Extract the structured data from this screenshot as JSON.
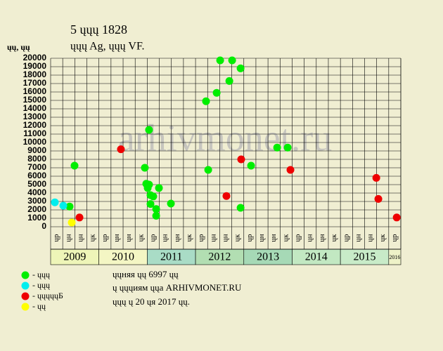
{
  "chart_data": {
    "type": "scatter",
    "title": "5 ųųų 1828",
    "subtitle": "ųųų Ag, ųųų VF.",
    "y_label": "ųų, ųų",
    "watermark": "arhivmonet.ru",
    "notes": [
      "ųųняя ųų 6997 ųų",
      "ų ųųųиям ųųа ARHIVMONET.RU",
      "ųųų ų 20 ųя 2017 ųų."
    ],
    "ylim": [
      0,
      20000
    ],
    "yticks": [
      0,
      1000,
      2000,
      3000,
      4000,
      5000,
      6000,
      7000,
      8000,
      9000,
      10000,
      11000,
      12000,
      13000,
      14000,
      15000,
      16000,
      17000,
      18000,
      19000,
      20000
    ],
    "xlim": [
      0,
      29
    ],
    "grid": true,
    "x_groups": [
      {
        "label": "2009",
        "color": "#eef5b8",
        "quarters": [
          "ųр",
          "ųн",
          "ųн",
          "ųк"
        ]
      },
      {
        "label": "2010",
        "color": "#f4f6c4",
        "quarters": [
          "ųр",
          "ųн",
          "ųн",
          "ųк"
        ]
      },
      {
        "label": "2011",
        "color": "#a9dcc6",
        "quarters": [
          "ųр",
          "ųн",
          "ųн",
          "ųк"
        ]
      },
      {
        "label": "2012",
        "color": "#b2deb2",
        "quarters": [
          "ųр",
          "ųн",
          "ųн",
          "ųк"
        ]
      },
      {
        "label": "2013",
        "color": "#a6d9b6",
        "quarters": [
          "ųр",
          "ųн",
          "ųн",
          "ųк"
        ]
      },
      {
        "label": "2014",
        "color": "#c2e8c2",
        "quarters": [
          "ųр",
          "ųн",
          "ųн",
          "ųк"
        ]
      },
      {
        "label": "2015",
        "color": "#c8ebc8",
        "quarters": [
          "ųр",
          "ųн",
          "ųн",
          "ųк"
        ]
      },
      {
        "label": "2016",
        "color": "#eef2c8",
        "quarters": [
          "ųр"
        ]
      }
    ],
    "series": [
      {
        "name": "- ųųų",
        "color": "#00ee00",
        "x": [
          1.57,
          1.98,
          7.8,
          8.15,
          7.92,
          8.15,
          8.04,
          8.27,
          8.5,
          8.27,
          8.74,
          8.74,
          8.97,
          9.96,
          12.87,
          13.05,
          13.75,
          14.04,
          14.8,
          15.03,
          15.73,
          15.73,
          16.6,
          18.76,
          19.63
        ],
        "values": [
          2400,
          7250,
          7000,
          11500,
          5100,
          5000,
          4600,
          3750,
          3600,
          2700,
          2100,
          1300,
          4600,
          2750,
          14900,
          6750,
          15900,
          19750,
          17300,
          19750,
          18800,
          2250,
          7250,
          9400,
          9400
        ]
      },
      {
        "name": "- ųųų",
        "color": "#00eeee",
        "x": [
          0.35,
          1.05
        ],
        "values": [
          2900,
          2500
        ]
      },
      {
        "name": "- ųųųųųБ",
        "color": "#ee0000",
        "x": [
          2.39,
          5.82,
          14.56,
          15.78,
          19.86,
          26.97,
          27.14,
          28.66
        ],
        "values": [
          1100,
          9200,
          3650,
          8000,
          6750,
          5800,
          3300,
          1100
        ]
      },
      {
        "name": "- ųų",
        "color": "#ffff00",
        "x": [
          1.75
        ],
        "values": [
          500
        ]
      }
    ]
  }
}
